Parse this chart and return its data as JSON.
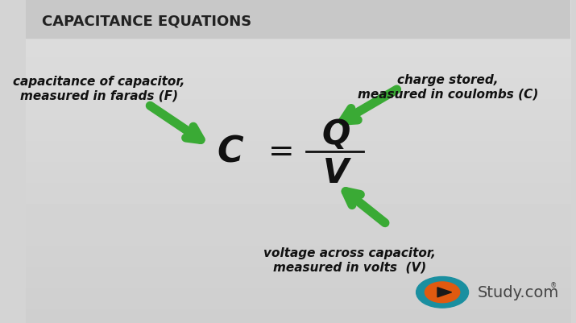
{
  "title": "CAPACITANCE EQUATIONS",
  "title_color": "#222222",
  "bg_color": "#d4d4d4",
  "title_bar_color": "#c8c8c8",
  "formula_C": "C",
  "formula_eq": "=",
  "formula_Q": "Q",
  "formula_V": "V",
  "label_left_line1": "capacitance of capacitor,",
  "label_left_line2": "measured in farads (F)",
  "label_right_line1": "charge stored,",
  "label_right_line2": "measured in coulombs (C)",
  "label_bottom_line1": "voltage across capacitor,",
  "label_bottom_line2": "measured in volts  (V)",
  "arrow_color": "#3aaa35",
  "text_color": "#111111",
  "studycom_text": "Study.com",
  "studycom_color": "#444444"
}
